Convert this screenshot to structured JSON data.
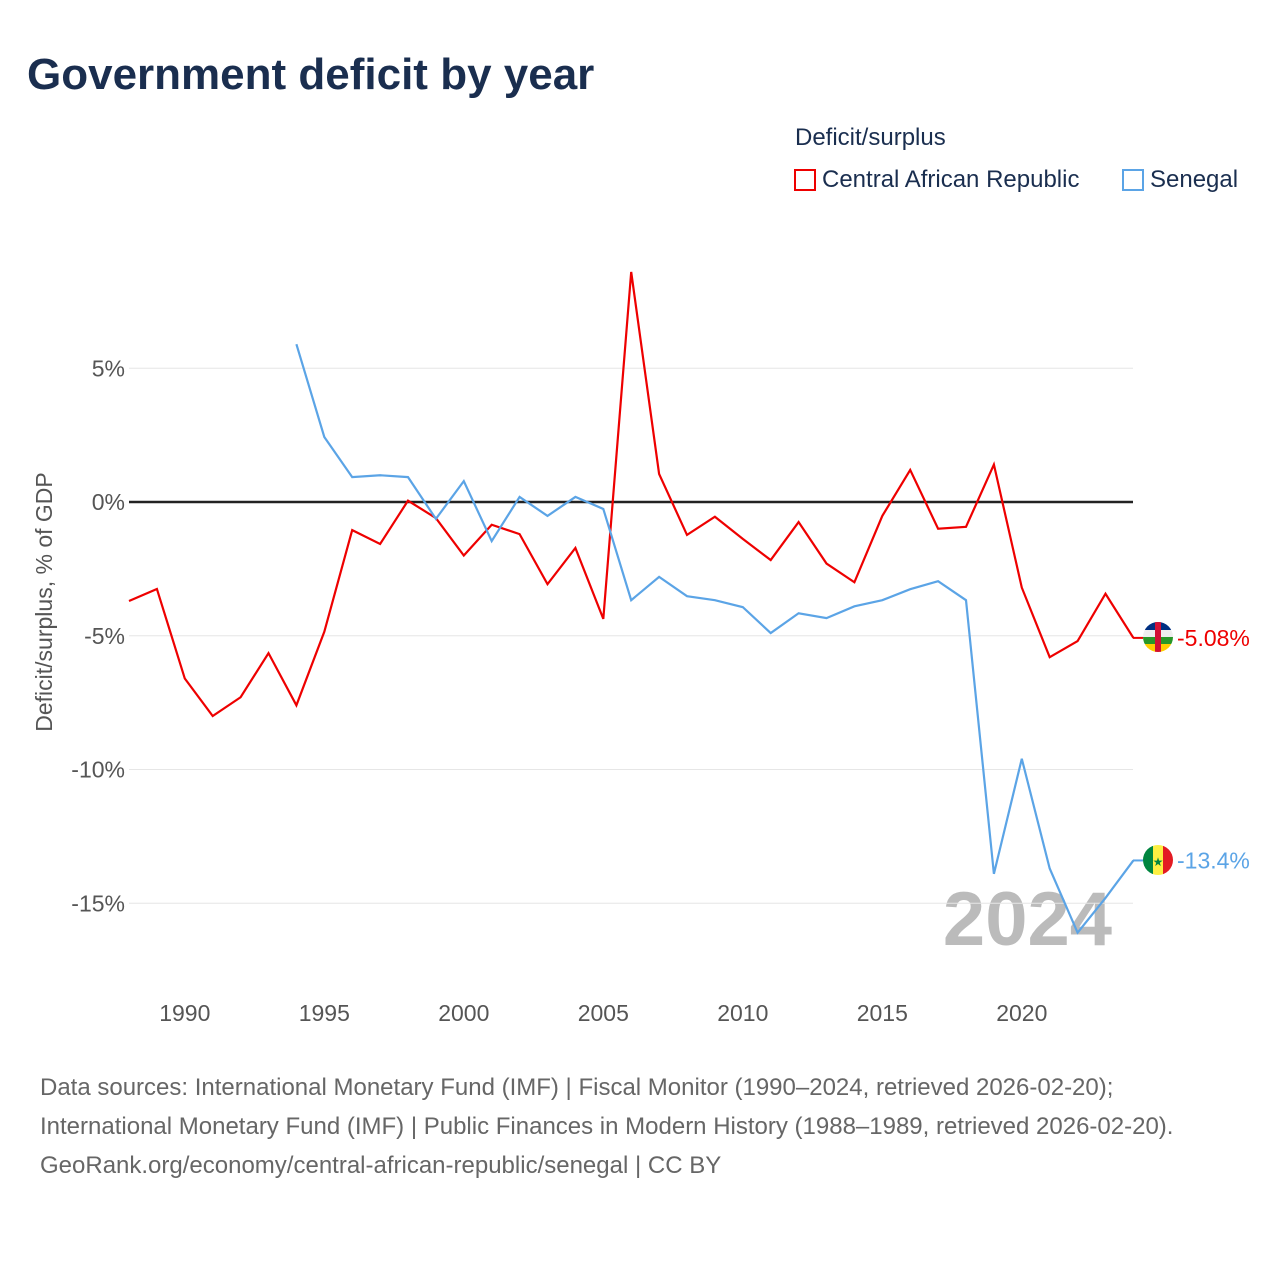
{
  "title": "Government deficit by year",
  "legend": {
    "title": "Deficit/surplus",
    "items": [
      "Central African Republic",
      "Senegal"
    ]
  },
  "chart_data": {
    "type": "line",
    "ylabel": "Deficit/surplus, % of GDP",
    "xlim": [
      1988,
      2024
    ],
    "ylim": [
      -17,
      10
    ],
    "yticks": [
      5,
      0,
      -5,
      -10,
      -15
    ],
    "ytick_labels": [
      "5%",
      "0%",
      "-5%",
      "-10%",
      "-15%"
    ],
    "xticks": [
      1990,
      1995,
      2000,
      2005,
      2010,
      2015,
      2020
    ],
    "watermark_year": "2024",
    "series": [
      {
        "name": "Central African Republic",
        "color": "#ee0000",
        "start": 1988,
        "end_label": "-5.08%",
        "values": [
          -3.7,
          -3.25,
          -6.6,
          -8.0,
          -7.3,
          -5.65,
          -7.6,
          -4.85,
          -1.05,
          -1.57,
          0.05,
          -0.6,
          -2.0,
          -0.85,
          -1.2,
          -3.07,
          -1.72,
          -4.37,
          8.6,
          1.05,
          -1.23,
          -0.55,
          -1.38,
          -2.17,
          -0.75,
          -2.3,
          -3.0,
          -0.52,
          1.2,
          -1.0,
          -0.93,
          1.4,
          -3.2,
          -5.8,
          -5.2,
          -3.43,
          -5.08
        ]
      },
      {
        "name": "Senegal",
        "color": "#5ba4e6",
        "start": 1994,
        "end_label": "-13.4%",
        "values": [
          5.9,
          2.43,
          0.93,
          1.0,
          0.93,
          -0.63,
          0.78,
          -1.46,
          0.19,
          -0.52,
          0.19,
          -0.26,
          -3.67,
          -2.8,
          -3.52,
          -3.67,
          -3.93,
          -4.9,
          -4.16,
          -4.34,
          -3.9,
          -3.67,
          -3.26,
          -2.96,
          -3.67,
          -13.9,
          -9.6,
          -13.7,
          -16.1,
          -14.8,
          -13.4
        ]
      }
    ]
  },
  "sources": {
    "line1": "Data sources: International Monetary Fund (IMF) | Fiscal Monitor (1990–2024, retrieved 2026-02-20); International Monetary Fund (IMF) | Public Finances in Modern History (1988–1989, retrieved 2026-02-20).",
    "line2": "GeoRank.org/economy/central-african-republic/senegal | CC BY"
  }
}
